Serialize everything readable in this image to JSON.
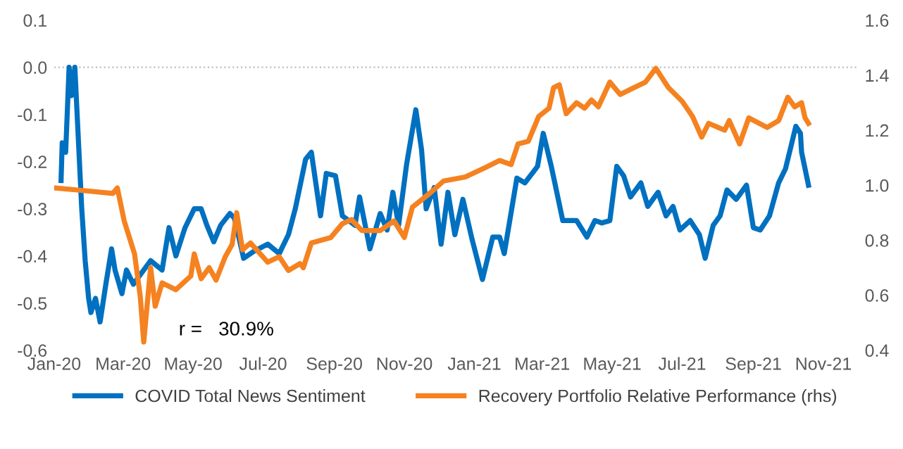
{
  "chart_data": {
    "type": "line",
    "xlim": [
      "2020-01-01",
      "2021-12-01"
    ],
    "xticks": [
      {
        "value": "2020-01-01",
        "label": "Jan-20"
      },
      {
        "value": "2020-03-01",
        "label": "Mar-20"
      },
      {
        "value": "2020-05-01",
        "label": "May-20"
      },
      {
        "value": "2020-07-01",
        "label": "Jul-20"
      },
      {
        "value": "2020-09-01",
        "label": "Sep-20"
      },
      {
        "value": "2020-11-01",
        "label": "Nov-20"
      },
      {
        "value": "2021-01-01",
        "label": "Jan-21"
      },
      {
        "value": "2021-03-01",
        "label": "Mar-21"
      },
      {
        "value": "2021-05-01",
        "label": "May-21"
      },
      {
        "value": "2021-07-01",
        "label": "Jul-21"
      },
      {
        "value": "2021-09-01",
        "label": "Sep-21"
      },
      {
        "value": "2021-11-01",
        "label": "Nov-21"
      }
    ],
    "ylim": [
      -0.6,
      0.1
    ],
    "yticks": [
      {
        "value": -0.6,
        "label": "-0.6"
      },
      {
        "value": -0.5,
        "label": "-0.5"
      },
      {
        "value": -0.4,
        "label": "-0.4"
      },
      {
        "value": -0.3,
        "label": "-0.3"
      },
      {
        "value": -0.2,
        "label": "-0.2"
      },
      {
        "value": -0.1,
        "label": "-0.1"
      },
      {
        "value": 0.0,
        "label": "0.0"
      },
      {
        "value": 0.1,
        "label": "0.1"
      }
    ],
    "y2lim": [
      0.4,
      1.6
    ],
    "y2ticks": [
      {
        "value": 0.4,
        "label": "0.4"
      },
      {
        "value": 0.6,
        "label": "0.6"
      },
      {
        "value": 0.8,
        "label": "0.8"
      },
      {
        "value": 1.0,
        "label": "1.0"
      },
      {
        "value": 1.2,
        "label": "1.2"
      },
      {
        "value": 1.4,
        "label": "1.4"
      },
      {
        "value": 1.6,
        "label": "1.6"
      }
    ],
    "ref_lines": [
      {
        "axis": "y",
        "value": 0,
        "color": "#bfbfbf",
        "line_style": "dotted"
      }
    ],
    "grid": false,
    "legend": "bottom",
    "marker": "none",
    "line_style": "solid",
    "annotations": [
      "r =   30.9%"
    ],
    "series": [
      {
        "name": "COVID Total News Sentiment",
        "color": "#0070c0",
        "axis": "y",
        "x": [
          "2020-01-07",
          "2020-01-08",
          "2020-01-11",
          "2020-01-14",
          "2020-01-16",
          "2020-01-19",
          "2020-01-21",
          "2020-01-23",
          "2020-01-25",
          "2020-01-28",
          "2020-01-31",
          "2020-02-02",
          "2020-02-06",
          "2020-02-10",
          "2020-02-15",
          "2020-02-20",
          "2020-02-23",
          "2020-02-29",
          "2020-03-04",
          "2020-03-10",
          "2020-03-16",
          "2020-03-25",
          "2020-04-04",
          "2020-04-10",
          "2020-04-16",
          "2020-04-24",
          "2020-05-02",
          "2020-05-08",
          "2020-05-13",
          "2020-05-19",
          "2020-05-25",
          "2020-06-02",
          "2020-06-06",
          "2020-06-14",
          "2020-06-23",
          "2020-07-05",
          "2020-07-15",
          "2020-07-23",
          "2020-07-29",
          "2020-08-07",
          "2020-08-12",
          "2020-08-20",
          "2020-08-25",
          "2020-09-02",
          "2020-09-08",
          "2020-09-19",
          "2020-09-23",
          "2020-10-02",
          "2020-10-11",
          "2020-10-17",
          "2020-10-22",
          "2020-10-27",
          "2020-11-03",
          "2020-11-11",
          "2020-11-16",
          "2020-11-20",
          "2020-11-27",
          "2020-12-03",
          "2020-12-09",
          "2020-12-15",
          "2020-12-22",
          "2020-12-30",
          "2021-01-08",
          "2021-01-17",
          "2021-01-23",
          "2021-01-27",
          "2021-02-07",
          "2021-02-14",
          "2021-02-25",
          "2021-03-02",
          "2021-03-09",
          "2021-03-19",
          "2021-03-31",
          "2021-04-09",
          "2021-04-16",
          "2021-04-22",
          "2021-04-29",
          "2021-05-05",
          "2021-05-11",
          "2021-05-17",
          "2021-05-26",
          "2021-06-01",
          "2021-06-10",
          "2021-06-17",
          "2021-06-23",
          "2021-06-29",
          "2021-07-08",
          "2021-07-16",
          "2021-07-21",
          "2021-07-28",
          "2021-08-03",
          "2021-08-09",
          "2021-08-17",
          "2021-08-26",
          "2021-09-01",
          "2021-09-07",
          "2021-09-15",
          "2021-09-23",
          "2021-09-29",
          "2021-10-04",
          "2021-10-08",
          "2021-10-12",
          "2021-10-13",
          "2021-10-19"
        ],
        "values": [
          -0.24,
          -0.16,
          -0.18,
          0.0,
          -0.06,
          0.0,
          -0.1,
          -0.2,
          -0.3,
          -0.41,
          -0.49,
          -0.52,
          -0.49,
          -0.54,
          -0.46,
          -0.385,
          -0.43,
          -0.48,
          -0.43,
          -0.46,
          -0.44,
          -0.41,
          -0.43,
          -0.34,
          -0.4,
          -0.34,
          -0.3,
          -0.3,
          -0.335,
          -0.37,
          -0.335,
          -0.31,
          -0.32,
          -0.405,
          -0.39,
          -0.375,
          -0.395,
          -0.355,
          -0.3,
          -0.195,
          -0.18,
          -0.315,
          -0.225,
          -0.23,
          -0.315,
          -0.335,
          -0.275,
          -0.385,
          -0.31,
          -0.345,
          -0.265,
          -0.335,
          -0.205,
          -0.09,
          -0.175,
          -0.3,
          -0.255,
          -0.375,
          -0.265,
          -0.355,
          -0.28,
          -0.365,
          -0.45,
          -0.36,
          -0.36,
          -0.395,
          -0.235,
          -0.245,
          -0.21,
          -0.14,
          -0.21,
          -0.325,
          -0.325,
          -0.36,
          -0.325,
          -0.33,
          -0.325,
          -0.21,
          -0.23,
          -0.275,
          -0.245,
          -0.295,
          -0.265,
          -0.315,
          -0.295,
          -0.345,
          -0.325,
          -0.355,
          -0.405,
          -0.335,
          -0.315,
          -0.26,
          -0.28,
          -0.25,
          -0.34,
          -0.345,
          -0.315,
          -0.245,
          -0.215,
          -0.165,
          -0.125,
          -0.14,
          -0.18,
          -0.25
        ]
      },
      {
        "name": "Recovery Portfolio Relative Performance (rhs)",
        "color": "#f58220",
        "axis": "y2",
        "x": [
          "2020-01-02",
          "2020-01-28",
          "2020-02-21",
          "2020-02-25",
          "2020-03-02",
          "2020-03-11",
          "2020-03-16",
          "2020-03-19",
          "2020-03-25",
          "2020-03-29",
          "2020-04-04",
          "2020-04-16",
          "2020-04-29",
          "2020-05-02",
          "2020-05-08",
          "2020-05-15",
          "2020-05-21",
          "2020-05-29",
          "2020-06-04",
          "2020-06-08",
          "2020-06-13",
          "2020-06-20",
          "2020-07-05",
          "2020-07-15",
          "2020-07-23",
          "2020-08-02",
          "2020-08-05",
          "2020-08-12",
          "2020-08-29",
          "2020-09-08",
          "2020-09-16",
          "2020-09-25",
          "2020-10-11",
          "2020-10-23",
          "2020-11-01",
          "2020-11-08",
          "2020-11-23",
          "2020-12-05",
          "2020-12-24",
          "2021-01-11",
          "2021-01-23",
          "2021-02-02",
          "2021-02-08",
          "2021-02-17",
          "2021-02-26",
          "2021-03-07",
          "2021-03-11",
          "2021-03-16",
          "2021-03-22",
          "2021-03-31",
          "2021-04-07",
          "2021-04-13",
          "2021-04-19",
          "2021-04-29",
          "2021-05-08",
          "2021-05-20",
          "2021-05-30",
          "2021-06-08",
          "2021-06-19",
          "2021-07-01",
          "2021-07-10",
          "2021-07-18",
          "2021-07-24",
          "2021-08-07",
          "2021-08-11",
          "2021-08-20",
          "2021-08-28",
          "2021-09-13",
          "2021-09-23",
          "2021-10-01",
          "2021-10-07",
          "2021-10-13",
          "2021-10-16",
          "2021-10-19"
        ],
        "values": [
          0.99,
          0.98,
          0.97,
          0.99,
          0.87,
          0.75,
          0.595,
          0.43,
          0.7,
          0.56,
          0.645,
          0.62,
          0.67,
          0.75,
          0.66,
          0.7,
          0.655,
          0.74,
          0.785,
          0.9,
          0.765,
          0.79,
          0.72,
          0.74,
          0.69,
          0.715,
          0.7,
          0.79,
          0.81,
          0.86,
          0.875,
          0.835,
          0.835,
          0.87,
          0.81,
          0.92,
          0.97,
          1.015,
          1.03,
          1.065,
          1.09,
          1.075,
          1.15,
          1.16,
          1.25,
          1.28,
          1.355,
          1.365,
          1.26,
          1.3,
          1.28,
          1.31,
          1.285,
          1.375,
          1.33,
          1.355,
          1.375,
          1.425,
          1.355,
          1.305,
          1.25,
          1.175,
          1.225,
          1.2,
          1.235,
          1.15,
          1.245,
          1.21,
          1.235,
          1.32,
          1.285,
          1.3,
          1.245,
          1.225
        ]
      }
    ]
  }
}
